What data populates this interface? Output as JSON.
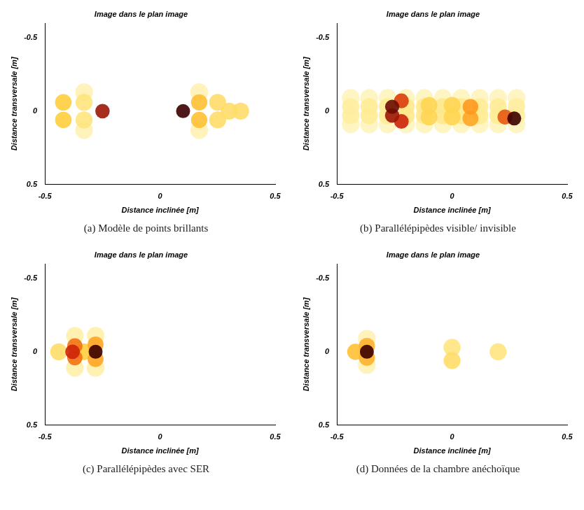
{
  "chart_data": [
    {
      "type": "scatter",
      "title": "Image dans le plan image",
      "x_label": "Distance inclinée [m]",
      "y_label": "Distance transversale [m]",
      "caption": "(a) Modèle de points brillants",
      "xlim": [
        -0.5,
        0.5
      ],
      "ylim": [
        -0.6,
        0.5
      ],
      "xticks": [
        -0.5,
        0,
        0.5
      ],
      "yticks": [
        -0.5,
        0,
        0.5
      ],
      "grid": false,
      "spots": [
        {
          "x": -0.33,
          "y": -0.13,
          "intensity": 0.12
        },
        {
          "x": -0.33,
          "y": 0.13,
          "intensity": 0.12
        },
        {
          "x": 0.17,
          "y": -0.13,
          "intensity": 0.12
        },
        {
          "x": 0.17,
          "y": 0.13,
          "intensity": 0.12
        },
        {
          "x": -0.33,
          "y": -0.06,
          "intensity": 0.25
        },
        {
          "x": -0.33,
          "y": 0.06,
          "intensity": 0.25
        },
        {
          "x": 0.35,
          "y": 0,
          "intensity": 0.3
        },
        {
          "x": 0.3,
          "y": 0,
          "intensity": 0.3
        },
        {
          "x": 0.25,
          "y": -0.06,
          "intensity": 0.3
        },
        {
          "x": 0.25,
          "y": 0.06,
          "intensity": 0.3
        },
        {
          "x": -0.42,
          "y": -0.06,
          "intensity": 0.4
        },
        {
          "x": -0.42,
          "y": 0.06,
          "intensity": 0.4
        },
        {
          "x": 0.17,
          "y": -0.06,
          "intensity": 0.45
        },
        {
          "x": 0.17,
          "y": 0.06,
          "intensity": 0.45
        },
        {
          "x": -0.25,
          "y": 0,
          "intensity": 0.9
        },
        {
          "x": 0.1,
          "y": 0,
          "intensity": 1.0
        }
      ]
    },
    {
      "type": "scatter",
      "title": "Image dans le plan image",
      "x_label": "Distance inclinée [m]",
      "y_label": "Distance transversale [m]",
      "caption": "(b) Parallélépipèdes visible/ invisible",
      "xlim": [
        -0.5,
        0.5
      ],
      "ylim": [
        -0.6,
        0.5
      ],
      "xticks": [
        -0.5,
        0,
        0.5
      ],
      "yticks": [
        -0.5,
        0,
        0.5
      ],
      "grid": false,
      "spots": [
        {
          "x": -0.44,
          "y": -0.09,
          "intensity": 0.1
        },
        {
          "x": -0.36,
          "y": -0.09,
          "intensity": 0.1
        },
        {
          "x": -0.28,
          "y": -0.09,
          "intensity": 0.1
        },
        {
          "x": -0.2,
          "y": -0.09,
          "intensity": 0.1
        },
        {
          "x": -0.12,
          "y": -0.09,
          "intensity": 0.1
        },
        {
          "x": -0.04,
          "y": -0.09,
          "intensity": 0.1
        },
        {
          "x": 0.04,
          "y": -0.09,
          "intensity": 0.1
        },
        {
          "x": 0.12,
          "y": -0.09,
          "intensity": 0.1
        },
        {
          "x": 0.2,
          "y": -0.09,
          "intensity": 0.1
        },
        {
          "x": 0.28,
          "y": -0.09,
          "intensity": 0.1
        },
        {
          "x": -0.44,
          "y": 0.09,
          "intensity": 0.1
        },
        {
          "x": -0.36,
          "y": 0.09,
          "intensity": 0.1
        },
        {
          "x": -0.28,
          "y": 0.09,
          "intensity": 0.1
        },
        {
          "x": -0.2,
          "y": 0.09,
          "intensity": 0.1
        },
        {
          "x": -0.12,
          "y": 0.09,
          "intensity": 0.1
        },
        {
          "x": -0.04,
          "y": 0.09,
          "intensity": 0.1
        },
        {
          "x": 0.04,
          "y": 0.09,
          "intensity": 0.1
        },
        {
          "x": 0.12,
          "y": 0.09,
          "intensity": 0.1
        },
        {
          "x": 0.2,
          "y": 0.09,
          "intensity": 0.1
        },
        {
          "x": 0.28,
          "y": 0.09,
          "intensity": 0.1
        },
        {
          "x": -0.44,
          "y": -0.03,
          "intensity": 0.18
        },
        {
          "x": -0.36,
          "y": -0.03,
          "intensity": 0.2
        },
        {
          "x": -0.28,
          "y": -0.03,
          "intensity": 0.2
        },
        {
          "x": -0.2,
          "y": -0.03,
          "intensity": 0.22
        },
        {
          "x": -0.12,
          "y": -0.03,
          "intensity": 0.22
        },
        {
          "x": -0.04,
          "y": -0.03,
          "intensity": 0.22
        },
        {
          "x": 0.04,
          "y": -0.03,
          "intensity": 0.22
        },
        {
          "x": 0.12,
          "y": -0.03,
          "intensity": 0.2
        },
        {
          "x": 0.2,
          "y": -0.03,
          "intensity": 0.2
        },
        {
          "x": 0.28,
          "y": -0.03,
          "intensity": 0.18
        },
        {
          "x": -0.44,
          "y": 0.03,
          "intensity": 0.18
        },
        {
          "x": -0.36,
          "y": 0.03,
          "intensity": 0.2
        },
        {
          "x": -0.28,
          "y": 0.03,
          "intensity": 0.2
        },
        {
          "x": -0.2,
          "y": 0.03,
          "intensity": 0.22
        },
        {
          "x": -0.12,
          "y": 0.03,
          "intensity": 0.22
        },
        {
          "x": -0.04,
          "y": 0.03,
          "intensity": 0.22
        },
        {
          "x": 0.04,
          "y": 0.03,
          "intensity": 0.22
        },
        {
          "x": 0.12,
          "y": 0.03,
          "intensity": 0.2
        },
        {
          "x": 0.2,
          "y": 0.03,
          "intensity": 0.2
        },
        {
          "x": 0.28,
          "y": 0.03,
          "intensity": 0.18
        },
        {
          "x": -0.1,
          "y": -0.04,
          "intensity": 0.35
        },
        {
          "x": -0.1,
          "y": 0.04,
          "intensity": 0.35
        },
        {
          "x": 0.0,
          "y": -0.04,
          "intensity": 0.35
        },
        {
          "x": 0.0,
          "y": 0.04,
          "intensity": 0.35
        },
        {
          "x": 0.08,
          "y": 0.05,
          "intensity": 0.55
        },
        {
          "x": 0.08,
          "y": -0.03,
          "intensity": 0.6
        },
        {
          "x": 0.23,
          "y": 0.04,
          "intensity": 0.75
        },
        {
          "x": -0.22,
          "y": -0.07,
          "intensity": 0.8
        },
        {
          "x": -0.22,
          "y": 0.07,
          "intensity": 0.85
        },
        {
          "x": -0.26,
          "y": 0.03,
          "intensity": 0.9
        },
        {
          "x": -0.26,
          "y": -0.03,
          "intensity": 0.95
        },
        {
          "x": 0.27,
          "y": 0.05,
          "intensity": 1.0
        }
      ]
    },
    {
      "type": "scatter",
      "title": "Image dans le plan image",
      "x_label": "Distance inclinée [m]",
      "y_label": "Distance transversale [m]",
      "caption": "(c) Parallélépipèdes avec SER",
      "xlim": [
        -0.5,
        0.5
      ],
      "ylim": [
        -0.6,
        0.5
      ],
      "xticks": [
        -0.5,
        0,
        0.5
      ],
      "yticks": [
        -0.5,
        0,
        0.5
      ],
      "grid": false,
      "spots": [
        {
          "x": -0.37,
          "y": -0.11,
          "intensity": 0.15
        },
        {
          "x": -0.37,
          "y": 0.11,
          "intensity": 0.15
        },
        {
          "x": -0.28,
          "y": -0.11,
          "intensity": 0.15
        },
        {
          "x": -0.28,
          "y": 0.11,
          "intensity": 0.15
        },
        {
          "x": -0.44,
          "y": 0,
          "intensity": 0.3
        },
        {
          "x": -0.33,
          "y": 0,
          "intensity": 0.4
        },
        {
          "x": -0.28,
          "y": -0.05,
          "intensity": 0.55
        },
        {
          "x": -0.28,
          "y": 0.05,
          "intensity": 0.55
        },
        {
          "x": -0.37,
          "y": -0.04,
          "intensity": 0.7
        },
        {
          "x": -0.37,
          "y": 0.04,
          "intensity": 0.7
        },
        {
          "x": -0.38,
          "y": 0,
          "intensity": 0.85
        },
        {
          "x": -0.28,
          "y": 0,
          "intensity": 1.0
        }
      ]
    },
    {
      "type": "scatter",
      "title": "Image dans le plan image",
      "x_label": "Distance inclinée [m]",
      "y_label": "Distance transversale [m]",
      "caption": "(d) Données de la chambre anéchoïque",
      "xlim": [
        -0.5,
        0.5
      ],
      "ylim": [
        -0.6,
        0.5
      ],
      "xticks": [
        -0.5,
        0,
        0.5
      ],
      "yticks": [
        -0.5,
        0,
        0.5
      ],
      "grid": false,
      "spots": [
        {
          "x": -0.37,
          "y": -0.09,
          "intensity": 0.12
        },
        {
          "x": -0.37,
          "y": 0.09,
          "intensity": 0.12
        },
        {
          "x": 0.0,
          "y": -0.03,
          "intensity": 0.25
        },
        {
          "x": 0.0,
          "y": 0.06,
          "intensity": 0.3
        },
        {
          "x": 0.2,
          "y": 0.0,
          "intensity": 0.25
        },
        {
          "x": -0.42,
          "y": 0,
          "intensity": 0.45
        },
        {
          "x": -0.37,
          "y": -0.04,
          "intensity": 0.5
        },
        {
          "x": -0.37,
          "y": 0.04,
          "intensity": 0.5
        },
        {
          "x": -0.37,
          "y": 0,
          "intensity": 1.0
        }
      ]
    }
  ]
}
